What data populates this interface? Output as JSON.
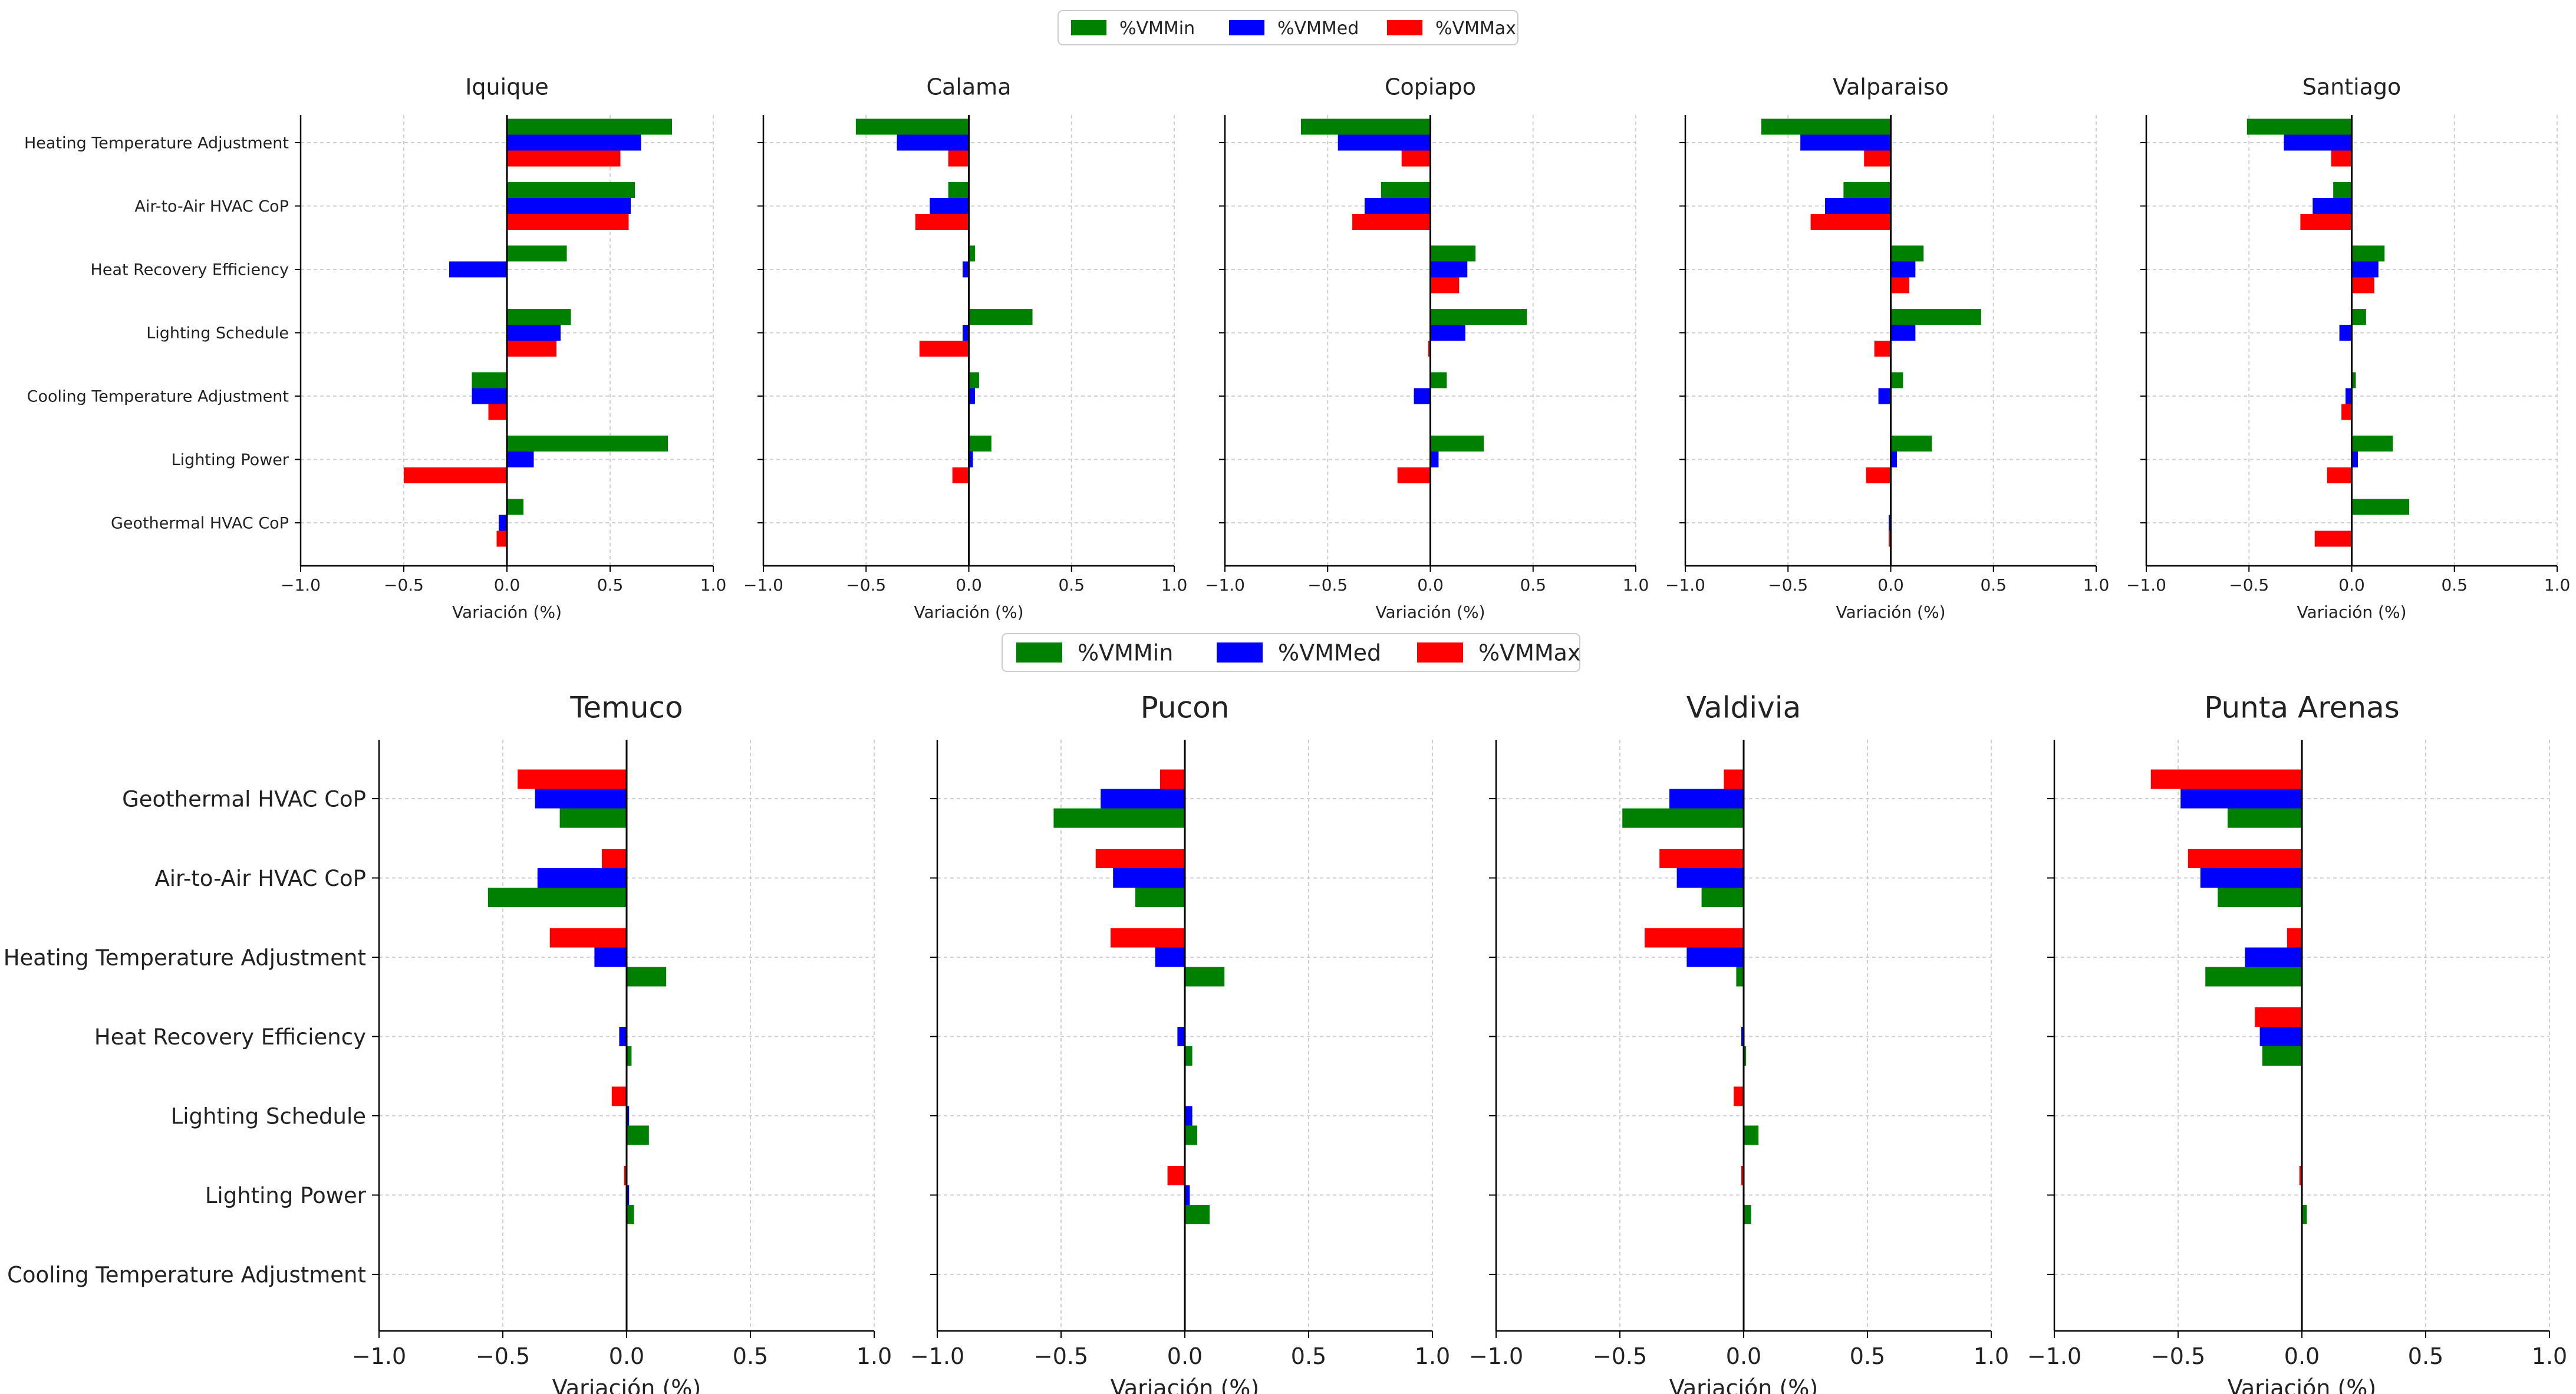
{
  "legend": {
    "items": [
      {
        "label": "%VMMin",
        "color": "#008000"
      },
      {
        "label": "%VMMed",
        "color": "#0000ff"
      },
      {
        "label": "%VMMax",
        "color": "#ff0000"
      }
    ]
  },
  "chart_data": [
    {
      "type": "bar",
      "orientation": "horizontal",
      "title": "Iquique",
      "xlabel": "Variación (%)",
      "xlim": [
        -1.0,
        1.0
      ],
      "xticks": [
        "−1.0",
        "−0.5",
        "0.0",
        "0.5",
        "1.0"
      ],
      "categories": [
        "Heating Temperature Adjustment",
        "Air-to-Air HVAC CoP",
        "Heat Recovery Efficiency",
        "Lighting Schedule",
        "Cooling Temperature Adjustment",
        "Lighting Power",
        "Geothermal HVAC CoP"
      ],
      "series": [
        {
          "name": "%VMMin",
          "values": [
            0.8,
            0.62,
            0.29,
            0.31,
            -0.17,
            0.78,
            0.08
          ]
        },
        {
          "name": "%VMMed",
          "values": [
            0.65,
            0.6,
            -0.28,
            0.26,
            -0.17,
            0.13,
            -0.04
          ]
        },
        {
          "name": "%VMMax",
          "values": [
            0.55,
            0.59,
            0.0,
            0.24,
            -0.09,
            -0.5,
            -0.05
          ]
        }
      ]
    },
    {
      "type": "bar",
      "orientation": "horizontal",
      "title": "Calama",
      "xlabel": "Variación (%)",
      "xlim": [
        -1.0,
        1.0
      ],
      "xticks": [
        "−1.0",
        "−0.5",
        "0.0",
        "0.5",
        "1.0"
      ],
      "categories": [
        "Heating Temperature Adjustment",
        "Air-to-Air HVAC CoP",
        "Heat Recovery Efficiency",
        "Lighting Schedule",
        "Cooling Temperature Adjustment",
        "Lighting Power",
        "Geothermal HVAC CoP"
      ],
      "series": [
        {
          "name": "%VMMin",
          "values": [
            -0.55,
            -0.1,
            0.03,
            0.31,
            0.05,
            0.11,
            0.0
          ]
        },
        {
          "name": "%VMMed",
          "values": [
            -0.35,
            -0.19,
            -0.03,
            -0.03,
            0.03,
            0.02,
            0.0
          ]
        },
        {
          "name": "%VMMax",
          "values": [
            -0.1,
            -0.26,
            0.0,
            -0.24,
            0.0,
            -0.08,
            0.0
          ]
        }
      ]
    },
    {
      "type": "bar",
      "orientation": "horizontal",
      "title": "Copiapo",
      "xlabel": "Variación (%)",
      "xlim": [
        -1.0,
        1.0
      ],
      "xticks": [
        "−1.0",
        "−0.5",
        "0.0",
        "0.5",
        "1.0"
      ],
      "categories": [
        "Heating Temperature Adjustment",
        "Air-to-Air HVAC CoP",
        "Heat Recovery Efficiency",
        "Lighting Schedule",
        "Cooling Temperature Adjustment",
        "Lighting Power",
        "Geothermal HVAC CoP"
      ],
      "series": [
        {
          "name": "%VMMin",
          "values": [
            -0.63,
            -0.24,
            0.22,
            0.47,
            0.08,
            0.26,
            0.0
          ]
        },
        {
          "name": "%VMMed",
          "values": [
            -0.45,
            -0.32,
            0.18,
            0.17,
            -0.08,
            0.04,
            0.0
          ]
        },
        {
          "name": "%VMMax",
          "values": [
            -0.14,
            -0.38,
            0.14,
            -0.01,
            0.0,
            -0.16,
            0.0
          ]
        }
      ]
    },
    {
      "type": "bar",
      "orientation": "horizontal",
      "title": "Valparaiso",
      "xlabel": "Variación (%)",
      "xlim": [
        -1.0,
        1.0
      ],
      "xticks": [
        "−1.0",
        "−0.5",
        "0.0",
        "0.5",
        "1.0"
      ],
      "categories": [
        "Heating Temperature Adjustment",
        "Air-to-Air HVAC CoP",
        "Heat Recovery Efficiency",
        "Lighting Schedule",
        "Cooling Temperature Adjustment",
        "Lighting Power",
        "Geothermal HVAC CoP"
      ],
      "series": [
        {
          "name": "%VMMin",
          "values": [
            -0.63,
            -0.23,
            0.16,
            0.44,
            0.06,
            0.2,
            0.0
          ]
        },
        {
          "name": "%VMMed",
          "values": [
            -0.44,
            -0.32,
            0.12,
            0.12,
            -0.06,
            0.03,
            -0.01
          ]
        },
        {
          "name": "%VMMax",
          "values": [
            -0.13,
            -0.39,
            0.09,
            -0.08,
            0.0,
            -0.12,
            -0.01
          ]
        }
      ]
    },
    {
      "type": "bar",
      "orientation": "horizontal",
      "title": "Santiago",
      "xlabel": "Variación (%)",
      "xlim": [
        -1.0,
        1.0
      ],
      "xticks": [
        "−1.0",
        "−0.5",
        "0.0",
        "0.5",
        "1.0"
      ],
      "categories": [
        "Heating Temperature Adjustment",
        "Air-to-Air HVAC CoP",
        "Heat Recovery Efficiency",
        "Lighting Schedule",
        "Cooling Temperature Adjustment",
        "Lighting Power",
        "Geothermal HVAC CoP"
      ],
      "series": [
        {
          "name": "%VMMin",
          "values": [
            -0.51,
            -0.09,
            0.16,
            0.07,
            0.02,
            0.2,
            0.28
          ]
        },
        {
          "name": "%VMMed",
          "values": [
            -0.33,
            -0.19,
            0.13,
            -0.06,
            -0.03,
            0.03,
            0.0
          ]
        },
        {
          "name": "%VMMax",
          "values": [
            -0.1,
            -0.25,
            0.11,
            0.0,
            -0.05,
            -0.12,
            -0.18
          ]
        }
      ]
    },
    {
      "type": "bar",
      "orientation": "horizontal",
      "title": "Temuco",
      "xlabel": "Variación (%)",
      "xlim": [
        -1.0,
        1.0
      ],
      "xticks": [
        "−1.0",
        "−0.5",
        "0.0",
        "0.5",
        "1.0"
      ],
      "categories": [
        "Geothermal HVAC CoP",
        "Air-to-Air HVAC CoP",
        "Heating Temperature Adjustment",
        "Heat Recovery Efficiency",
        "Lighting Schedule",
        "Lighting Power",
        "Cooling Temperature Adjustment"
      ],
      "series": [
        {
          "name": "%VMMax",
          "values": [
            -0.44,
            -0.1,
            -0.31,
            0.0,
            -0.06,
            -0.01,
            0.0
          ]
        },
        {
          "name": "%VMMed",
          "values": [
            -0.37,
            -0.36,
            -0.13,
            -0.03,
            0.01,
            0.01,
            0.0
          ]
        },
        {
          "name": "%VMMin",
          "values": [
            -0.27,
            -0.56,
            0.16,
            0.02,
            0.09,
            0.03,
            0.0
          ]
        }
      ]
    },
    {
      "type": "bar",
      "orientation": "horizontal",
      "title": "Pucon",
      "xlabel": "Variación (%)",
      "xlim": [
        -1.0,
        1.0
      ],
      "xticks": [
        "−1.0",
        "−0.5",
        "0.0",
        "0.5",
        "1.0"
      ],
      "categories": [
        "Geothermal HVAC CoP",
        "Air-to-Air HVAC CoP",
        "Heating Temperature Adjustment",
        "Heat Recovery Efficiency",
        "Lighting Schedule",
        "Lighting Power",
        "Cooling Temperature Adjustment"
      ],
      "series": [
        {
          "name": "%VMMax",
          "values": [
            -0.1,
            -0.36,
            -0.3,
            0.0,
            0.0,
            -0.07,
            0.0
          ]
        },
        {
          "name": "%VMMed",
          "values": [
            -0.34,
            -0.29,
            -0.12,
            -0.03,
            0.03,
            0.02,
            0.0
          ]
        },
        {
          "name": "%VMMin",
          "values": [
            -0.53,
            -0.2,
            0.16,
            0.03,
            0.05,
            0.1,
            0.0
          ]
        }
      ]
    },
    {
      "type": "bar",
      "orientation": "horizontal",
      "title": "Valdivia",
      "xlabel": "Variación (%)",
      "xlim": [
        -1.0,
        1.0
      ],
      "xticks": [
        "−1.0",
        "−0.5",
        "0.0",
        "0.5",
        "1.0"
      ],
      "categories": [
        "Geothermal HVAC CoP",
        "Air-to-Air HVAC CoP",
        "Heating Temperature Adjustment",
        "Heat Recovery Efficiency",
        "Lighting Schedule",
        "Lighting Power",
        "Cooling Temperature Adjustment"
      ],
      "series": [
        {
          "name": "%VMMax",
          "values": [
            -0.08,
            -0.34,
            -0.4,
            0.0,
            -0.04,
            -0.01,
            0.0
          ]
        },
        {
          "name": "%VMMed",
          "values": [
            -0.3,
            -0.27,
            -0.23,
            -0.01,
            0.0,
            0.0,
            0.0
          ]
        },
        {
          "name": "%VMMin",
          "values": [
            -0.49,
            -0.17,
            -0.03,
            0.01,
            0.06,
            0.03,
            0.0
          ]
        }
      ]
    },
    {
      "type": "bar",
      "orientation": "horizontal",
      "title": "Punta Arenas",
      "xlabel": "Variación (%)",
      "xlim": [
        -1.0,
        1.0
      ],
      "xticks": [
        "−1.0",
        "−0.5",
        "0.0",
        "0.5",
        "1.0"
      ],
      "categories": [
        "Geothermal HVAC CoP",
        "Air-to-Air HVAC CoP",
        "Heating Temperature Adjustment",
        "Heat Recovery Efficiency",
        "Lighting Schedule",
        "Lighting Power",
        "Cooling Temperature Adjustment"
      ],
      "series": [
        {
          "name": "%VMMax",
          "values": [
            -0.61,
            -0.46,
            -0.06,
            -0.19,
            0.0,
            -0.01,
            0.0
          ]
        },
        {
          "name": "%VMMed",
          "values": [
            -0.49,
            -0.41,
            -0.23,
            -0.17,
            0.0,
            0.0,
            0.0
          ]
        },
        {
          "name": "%VMMin",
          "values": [
            -0.3,
            -0.34,
            -0.39,
            -0.16,
            0.0,
            0.02,
            0.0
          ]
        }
      ]
    }
  ]
}
